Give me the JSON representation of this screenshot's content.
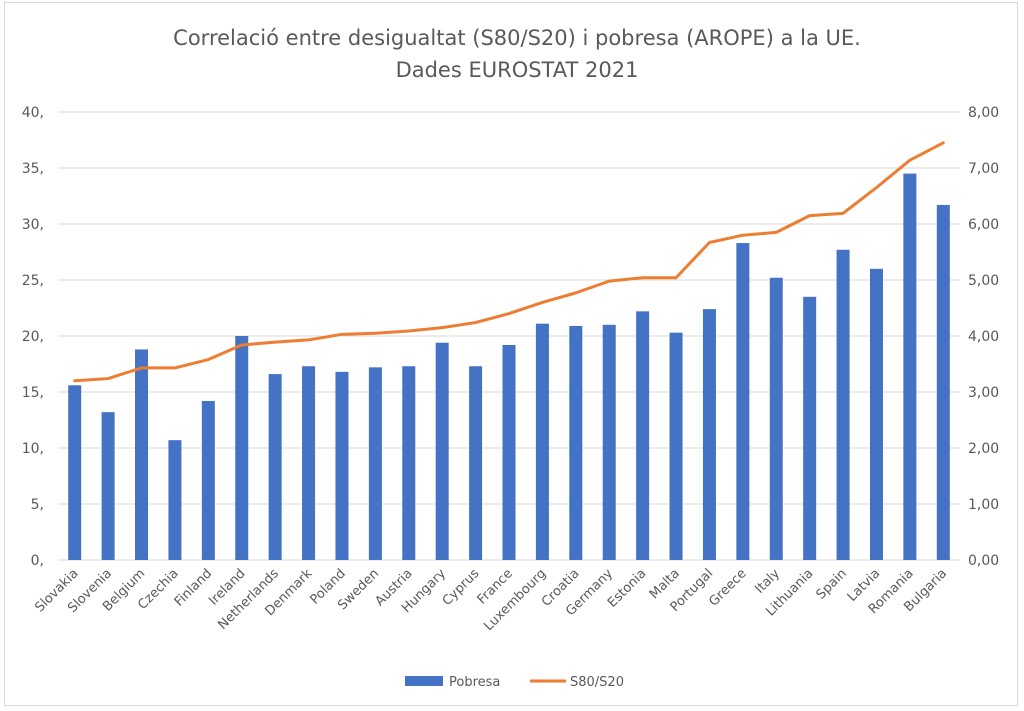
{
  "chart_data": {
    "type": "bar+line",
    "title": "Correlació entre desigualtat (S80/S20) i pobresa (AROPE) a la UE.",
    "subtitle": "Dades EUROSTAT 2021",
    "categories": [
      "Slovakia",
      "Slovenia",
      "Belgium",
      "Czechia",
      "Finland",
      "Ireland",
      "Netherlands",
      "Denmark",
      "Poland",
      "Sweden",
      "Austria",
      "Hungary",
      "Cyprus",
      "France",
      "Luxembourg",
      "Croatia",
      "Germany",
      "Estonia",
      "Malta",
      "Portugal",
      "Greece",
      "Italy",
      "Lithuania",
      "Spain",
      "Latvia",
      "Romania",
      "Bulgaria"
    ],
    "series": [
      {
        "name": "Pobresa",
        "type": "bar",
        "axis": "left",
        "color": "#4472c4",
        "values": [
          15.6,
          13.2,
          18.8,
          10.7,
          14.2,
          20.0,
          16.6,
          17.3,
          16.8,
          17.2,
          17.3,
          19.4,
          17.3,
          19.2,
          21.1,
          20.9,
          21.0,
          22.2,
          20.3,
          22.4,
          28.3,
          25.2,
          23.5,
          27.7,
          26.0,
          34.5,
          31.7
        ]
      },
      {
        "name": "S80/S20",
        "type": "line",
        "axis": "right",
        "color": "#ed7d31",
        "values": [
          3.2,
          3.24,
          3.43,
          3.43,
          3.58,
          3.84,
          3.89,
          3.93,
          4.03,
          4.05,
          4.09,
          4.15,
          4.24,
          4.4,
          4.6,
          4.77,
          4.98,
          5.04,
          5.04,
          5.67,
          5.8,
          5.85,
          6.15,
          6.19,
          6.65,
          7.14,
          7.45
        ]
      }
    ],
    "y_left": {
      "range": [
        0,
        40
      ],
      "tick_labels": [
        "0,",
        "5,",
        "10,",
        "15,",
        "20,",
        "25,",
        "30,",
        "35,",
        "40,"
      ]
    },
    "y_right": {
      "range": [
        0,
        8
      ],
      "tick_labels": [
        "0,00",
        "1,00",
        "2,00",
        "3,00",
        "4,00",
        "5,00",
        "6,00",
        "7,00",
        "8,00"
      ]
    },
    "grid": true,
    "legend": "bottom"
  }
}
